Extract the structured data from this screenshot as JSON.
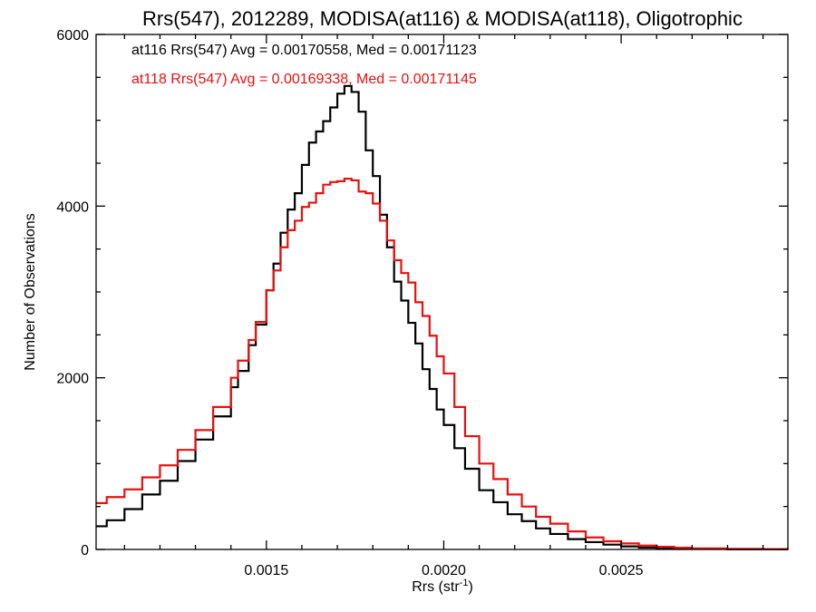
{
  "chart_data": {
    "type": "line",
    "title": "Rrs(547), 2012289, MODISA(at116) & MODISA(at118), Oligotrophic",
    "xlabel_main": "Rrs (str",
    "xlabel_sup": "-1",
    "xlabel_close": ")",
    "ylabel": "Number of Observations",
    "xlim": [
      0.00102,
      0.00297
    ],
    "ylim": [
      0,
      6000
    ],
    "grid": false,
    "step": true,
    "x_ticks": [
      {
        "value": 0.0015,
        "label": "0.0015"
      },
      {
        "value": 0.002,
        "label": "0.0020"
      },
      {
        "value": 0.0025,
        "label": "0.0025"
      }
    ],
    "y_ticks": [
      {
        "value": 0,
        "label": "0"
      },
      {
        "value": 2000,
        "label": "2000"
      },
      {
        "value": 4000,
        "label": "4000"
      },
      {
        "value": 6000,
        "label": "6000"
      }
    ],
    "annotations": [
      {
        "text": "at116 Rrs(547) Avg = 0.00170558, Med = 0.00171123",
        "color": "#000000"
      },
      {
        "text": "at118 Rrs(547) Avg = 0.00169338, Med = 0.00171145",
        "color": "#e81010"
      }
    ],
    "series": [
      {
        "color": "#000000",
        "x": [
          0.00102,
          0.00105,
          0.0011,
          0.00115,
          0.0012,
          0.00125,
          0.0013,
          0.00135,
          0.0014,
          0.00142,
          0.00145,
          0.00147,
          0.0015,
          0.00152,
          0.00154,
          0.00156,
          0.00158,
          0.0016,
          0.00162,
          0.00164,
          0.00166,
          0.00168,
          0.0017,
          0.00172,
          0.00174,
          0.00176,
          0.00178,
          0.0018,
          0.00182,
          0.00184,
          0.00186,
          0.00188,
          0.0019,
          0.00192,
          0.00194,
          0.00196,
          0.00198,
          0.002,
          0.00203,
          0.00206,
          0.0021,
          0.00214,
          0.00218,
          0.00222,
          0.00226,
          0.0023,
          0.00235,
          0.0024,
          0.00245,
          0.0025,
          0.00255,
          0.0026,
          0.00265,
          0.0027,
          0.0028,
          0.0029,
          0.00297
        ],
        "values": [
          270,
          340,
          470,
          640,
          800,
          1030,
          1280,
          1550,
          1890,
          2080,
          2380,
          2620,
          3020,
          3330,
          3690,
          3960,
          4150,
          4480,
          4740,
          4870,
          4990,
          5150,
          5310,
          5400,
          5330,
          5100,
          4650,
          4350,
          3900,
          3520,
          3120,
          2900,
          2640,
          2400,
          2100,
          1870,
          1630,
          1450,
          1180,
          940,
          690,
          550,
          410,
          330,
          245,
          180,
          120,
          85,
          56,
          36,
          22,
          14,
          9,
          6,
          3,
          2,
          1
        ]
      },
      {
        "color": "#e81010",
        "x": [
          0.00102,
          0.00105,
          0.0011,
          0.00115,
          0.0012,
          0.00125,
          0.0013,
          0.00135,
          0.0014,
          0.00142,
          0.00145,
          0.00147,
          0.0015,
          0.00152,
          0.00154,
          0.00156,
          0.00158,
          0.0016,
          0.00162,
          0.00164,
          0.00166,
          0.00168,
          0.0017,
          0.00172,
          0.00174,
          0.00176,
          0.00178,
          0.0018,
          0.00182,
          0.00184,
          0.00186,
          0.00188,
          0.0019,
          0.00192,
          0.00194,
          0.00196,
          0.00198,
          0.002,
          0.00203,
          0.00206,
          0.0021,
          0.00214,
          0.00218,
          0.00222,
          0.00226,
          0.0023,
          0.00235,
          0.0024,
          0.00245,
          0.0025,
          0.00255,
          0.0026,
          0.00265,
          0.0027,
          0.0028,
          0.0029,
          0.00297
        ],
        "values": [
          540,
          610,
          700,
          840,
          980,
          1160,
          1390,
          1660,
          2000,
          2200,
          2440,
          2650,
          3020,
          3250,
          3520,
          3720,
          3830,
          3990,
          4040,
          4150,
          4250,
          4280,
          4290,
          4320,
          4300,
          4170,
          4150,
          4030,
          3830,
          3600,
          3370,
          3220,
          3110,
          2880,
          2720,
          2490,
          2250,
          2050,
          1660,
          1320,
          1000,
          820,
          640,
          500,
          380,
          300,
          210,
          140,
          95,
          70,
          45,
          30,
          20,
          12,
          7,
          4,
          2
        ]
      }
    ]
  }
}
